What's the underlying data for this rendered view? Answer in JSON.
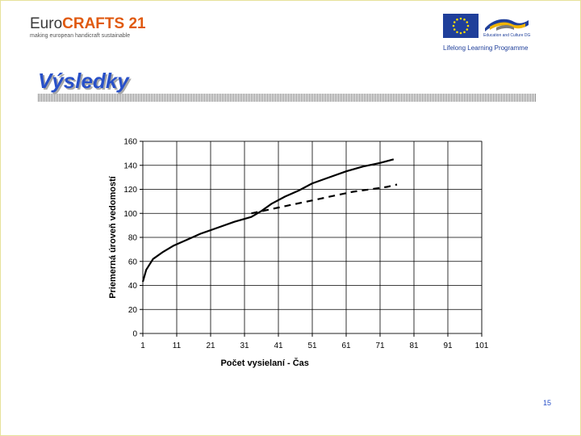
{
  "header": {
    "logo_euro": "Euro",
    "logo_crafts": "CRAFTS 21",
    "logo_tagline": "making european handicraft sustainable",
    "programme_text": "Education and Culture DG",
    "llp_text": "Lifelong Learning Programme"
  },
  "slide": {
    "title": "Výsledky",
    "page_number": "15"
  },
  "colors": {
    "title": "#2850c8",
    "logo_accent": "#e05a10",
    "eu_blue": "#1f3f9a",
    "eu_star": "#ffdd00"
  },
  "chart_data": {
    "type": "line",
    "xlabel": "Počet vysielaní - Čas",
    "ylabel": "Priemerná úroveň vedomostí",
    "xlim": [
      1,
      101
    ],
    "ylim": [
      0,
      160
    ],
    "x_ticks": [
      "1",
      "11",
      "21",
      "31",
      "41",
      "51",
      "61",
      "71",
      "81",
      "91",
      "101"
    ],
    "y_ticks": [
      "0",
      "20",
      "40",
      "60",
      "80",
      "100",
      "120",
      "140",
      "160"
    ],
    "grid": true,
    "legend": "none",
    "series": [
      {
        "style": "solid",
        "x": [
          1,
          2,
          4,
          7,
          10,
          14,
          18,
          23,
          28,
          33,
          36,
          39,
          43,
          47,
          51,
          56,
          61,
          66,
          71,
          75
        ],
        "y": [
          43,
          53,
          62,
          68,
          73,
          78,
          83,
          88,
          93,
          97,
          102,
          108,
          114,
          119,
          125,
          130,
          135,
          139,
          142,
          145
        ]
      },
      {
        "style": "dashed",
        "x": [
          33,
          38,
          43,
          48,
          53,
          58,
          63,
          68,
          73,
          76
        ],
        "y": [
          100,
          103,
          106,
          109,
          112,
          115,
          118,
          120,
          122,
          124
        ]
      }
    ]
  }
}
